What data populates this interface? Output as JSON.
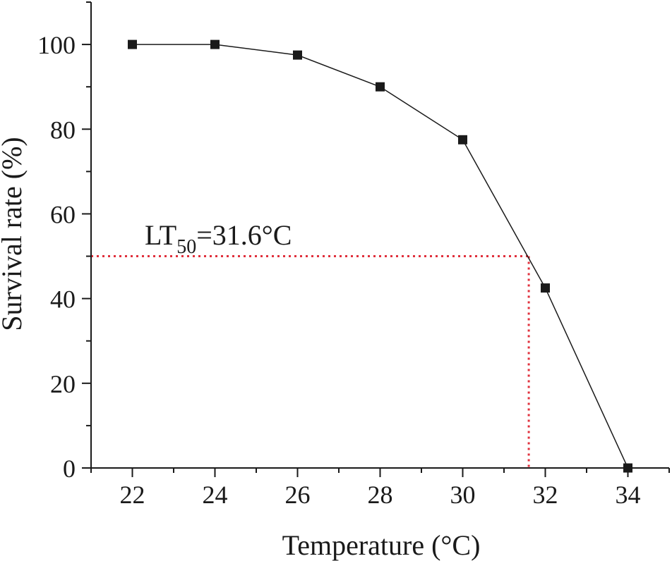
{
  "chart_data": {
    "type": "line",
    "title": "",
    "xlabel": "Temperature (°C)",
    "ylabel": "Survival rate (%)",
    "xlim": [
      21,
      35
    ],
    "ylim": [
      0,
      110
    ],
    "x_ticks": [
      "22",
      "24",
      "26",
      "28",
      "30",
      "32",
      "34"
    ],
    "y_ticks": [
      "0",
      "20",
      "40",
      "60",
      "80",
      "100"
    ],
    "grid": false,
    "series": [
      {
        "x": [
          22,
          24,
          26,
          28,
          30,
          32,
          34
        ],
        "y": [
          100,
          100,
          97.5,
          90,
          77.5,
          42.5,
          0
        ],
        "color": "#1a1a1a",
        "marker": "square"
      }
    ],
    "reference": {
      "x": 31.6,
      "y": 50,
      "color": "#e0303c",
      "style": "dotted"
    },
    "annotation": {
      "prefix": "LT",
      "subscript": "50",
      "suffix": "=31.6°C"
    }
  }
}
